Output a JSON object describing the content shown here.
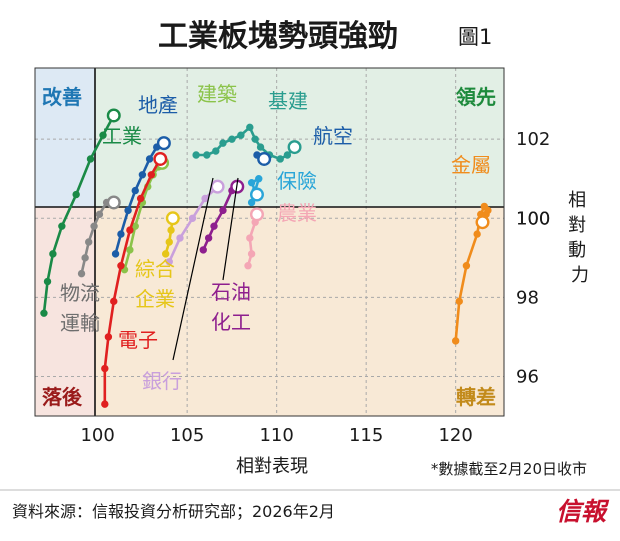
{
  "title": "工業板塊勢頭強勁",
  "figure_label": "圖1",
  "source": "資料來源：信報投資分析研究部；2026年2月",
  "logo_text": "信報",
  "quadrants": {
    "improving": "改善",
    "leading": "領先",
    "lagging": "落後",
    "weakening": "轉差"
  },
  "colors": {
    "improving_bg": "#dde9f4",
    "leading_bg": "#e2efe5",
    "lagging_bg": "#f7e4df",
    "weakening_bg": "#f8e9d6",
    "improving_text": "#1f77b4",
    "leading_text": "#1e8a3c",
    "lagging_text": "#9a1b1b",
    "weakening_text": "#c28a1a",
    "logo": "#c8102e"
  },
  "chart_data": {
    "type": "scatter",
    "title": "工業板塊勢頭強勁",
    "xlabel": "相對表現",
    "ylabel": "相對動力",
    "note": "*數據截至2月20日收市",
    "xlim": [
      96.5,
      122.7
    ],
    "ylim": [
      95.0,
      103.8
    ],
    "xticks": [
      100,
      105,
      110,
      115,
      120
    ],
    "yticks": [
      96,
      98,
      100,
      102
    ],
    "grid": true,
    "reference_lines": {
      "x": 100,
      "y": 100
    },
    "series": [
      {
        "name": "工業",
        "color": "#1a8a47",
        "points": [
          [
            97.0,
            97.6
          ],
          [
            97.2,
            98.4
          ],
          [
            97.5,
            99.1
          ],
          [
            98.0,
            99.8
          ],
          [
            98.8,
            100.6
          ],
          [
            99.6,
            101.5
          ],
          [
            100.3,
            102.1
          ],
          [
            100.9,
            102.6
          ]
        ]
      },
      {
        "name": "地產",
        "color": "#1c5da8",
        "points": [
          [
            101.0,
            99.1
          ],
          [
            101.3,
            99.6
          ],
          [
            101.7,
            100.2
          ],
          [
            102.1,
            100.7
          ],
          [
            102.5,
            101.1
          ],
          [
            102.9,
            101.5
          ],
          [
            103.3,
            101.8
          ],
          [
            103.7,
            101.9
          ]
        ]
      },
      {
        "name": "建築",
        "color": "#8bc34a",
        "points": [
          [
            101.5,
            98.7
          ],
          [
            101.8,
            99.2
          ],
          [
            102.1,
            99.8
          ],
          [
            102.5,
            100.4
          ],
          [
            102.8,
            100.8
          ],
          [
            103.1,
            101.1
          ],
          [
            103.4,
            101.3
          ],
          [
            103.6,
            101.4
          ]
        ]
      },
      {
        "name": "基建",
        "color": "#2a9d8f",
        "points": [
          [
            105.5,
            101.6
          ],
          [
            106.1,
            101.6
          ],
          [
            106.6,
            101.7
          ],
          [
            107.0,
            101.9
          ],
          [
            107.5,
            102.0
          ],
          [
            108.0,
            102.1
          ],
          [
            108.5,
            102.3
          ],
          [
            108.8,
            102.0
          ],
          [
            109.1,
            101.8
          ],
          [
            109.6,
            101.6
          ],
          [
            110.2,
            101.5
          ],
          [
            110.6,
            101.6
          ],
          [
            111.0,
            101.8
          ]
        ]
      },
      {
        "name": "航空",
        "color": "#1c5da8",
        "points": [
          [
            108.9,
            101.6
          ],
          [
            109.3,
            101.5
          ]
        ]
      },
      {
        "name": "保險",
        "color": "#29a5d8",
        "points": [
          [
            108.6,
            100.4
          ],
          [
            108.8,
            100.7
          ],
          [
            109.0,
            101.0
          ],
          [
            108.6,
            100.9
          ],
          [
            108.9,
            100.6
          ]
        ]
      },
      {
        "name": "農業",
        "color": "#f4a6b5",
        "points": [
          [
            108.4,
            98.8
          ],
          [
            108.6,
            99.1
          ],
          [
            108.5,
            99.5
          ],
          [
            108.8,
            99.9
          ],
          [
            108.9,
            100.1
          ]
        ]
      },
      {
        "name": "綜合企業",
        "color": "#e6c619",
        "points": [
          [
            103.8,
            99.1
          ],
          [
            104.0,
            99.4
          ],
          [
            104.1,
            99.7
          ],
          [
            104.2,
            100.0
          ]
        ]
      },
      {
        "name": "石油化工",
        "color": "#8e1f8e",
        "points": [
          [
            105.9,
            99.2
          ],
          [
            106.2,
            99.5
          ],
          [
            106.5,
            99.8
          ],
          [
            107.0,
            100.2
          ],
          [
            107.5,
            100.7
          ],
          [
            107.8,
            100.8
          ]
        ]
      },
      {
        "name": "銀行",
        "color": "#c9a0dc",
        "points": [
          [
            104.0,
            98.9
          ],
          [
            104.6,
            99.5
          ],
          [
            105.3,
            100.0
          ],
          [
            106.0,
            100.5
          ],
          [
            106.7,
            100.8
          ]
        ]
      },
      {
        "name": "電子",
        "color": "#e02020",
        "points": [
          [
            100.4,
            95.3
          ],
          [
            100.4,
            96.2
          ],
          [
            100.6,
            97.0
          ],
          [
            100.9,
            97.9
          ],
          [
            101.3,
            98.8
          ],
          [
            101.8,
            99.7
          ],
          [
            102.4,
            100.5
          ],
          [
            103.0,
            101.1
          ],
          [
            103.5,
            101.5
          ]
        ]
      },
      {
        "name": "物流運輸",
        "color": "#888888",
        "points": [
          [
            99.1,
            98.6
          ],
          [
            99.3,
            99.0
          ],
          [
            99.5,
            99.4
          ],
          [
            99.8,
            99.8
          ],
          [
            100.1,
            100.1
          ],
          [
            100.5,
            100.4
          ],
          [
            100.9,
            100.4
          ]
        ]
      },
      {
        "name": "金屬",
        "color": "#f08c1c",
        "points": [
          [
            120.0,
            96.9
          ],
          [
            120.2,
            97.9
          ],
          [
            120.6,
            98.8
          ],
          [
            121.2,
            99.6
          ],
          [
            121.4,
            100.1
          ],
          [
            121.6,
            100.3
          ],
          [
            121.8,
            100.2
          ],
          [
            121.7,
            100.1
          ],
          [
            121.5,
            99.9
          ]
        ]
      }
    ]
  }
}
